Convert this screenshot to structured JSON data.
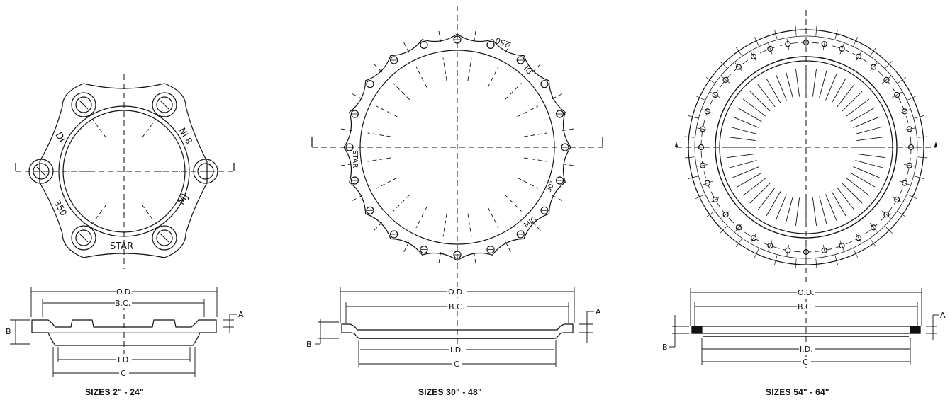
{
  "panels": {
    "small": {
      "caption": "SIZES 2\" - 24\"",
      "face_text": {
        "di": "DI",
        "class": "350",
        "star": "STAR",
        "mj": "MJ",
        "size": "8 IN"
      },
      "dims": {
        "od": "O.D.",
        "bc": "B.C.",
        "id": "I.D.",
        "c": "C",
        "a": "A",
        "b": "B"
      }
    },
    "medium": {
      "caption": "SIZES 30\" - 48\"",
      "face_text": {
        "di": "DI",
        "class": "250",
        "star": "STAR",
        "mjg": "MJG",
        "size": "30\""
      },
      "dims": {
        "od": "O.D.",
        "bc": "B.C.",
        "id": "I.D.",
        "c": "C",
        "a": "A",
        "b": "B"
      }
    },
    "large": {
      "caption": "SIZES 54\" - 64\"",
      "dims": {
        "od": "O.D.",
        "bc": "B.C.",
        "id": "I.D.",
        "c": "C",
        "a": "A",
        "b": "B"
      }
    }
  }
}
